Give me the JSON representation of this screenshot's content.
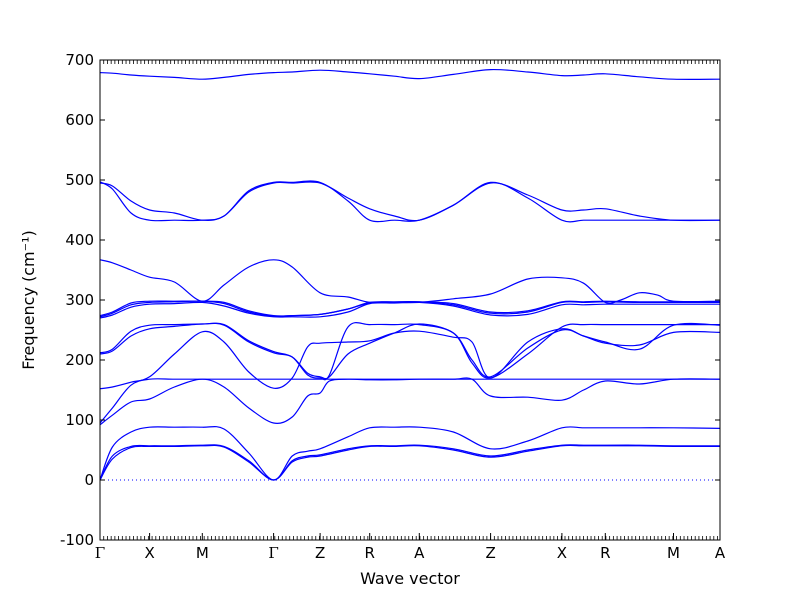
{
  "chart_data": {
    "type": "line",
    "xlabel": "Wave vector",
    "ylabel": "Frequency (cm⁻¹)",
    "ylim": [
      -100,
      700
    ],
    "yticks": [
      -100,
      0,
      100,
      200,
      300,
      400,
      500,
      600,
      700
    ],
    "xlim": [
      0,
      1
    ],
    "xticks": [
      {
        "label": "Γ",
        "x": 0.0
      },
      {
        "label": "X",
        "x": 0.08
      },
      {
        "label": "M",
        "x": 0.165
      },
      {
        "label": "Γ",
        "x": 0.28
      },
      {
        "label": "Z",
        "x": 0.355
      },
      {
        "label": "R",
        "x": 0.435
      },
      {
        "label": "A",
        "x": 0.515
      },
      {
        "label": "Z",
        "x": 0.63
      },
      {
        "label": "X",
        "x": 0.745
      },
      {
        "label": "R",
        "x": 0.815
      },
      {
        "label": "M",
        "x": 0.925
      },
      {
        "label": "A",
        "x": 1.0
      }
    ],
    "zero_line": 0,
    "grid": false,
    "line_color": "#0000ff",
    "series": [
      {
        "x": [
          0.0,
          0.02,
          0.05,
          0.08,
          0.12,
          0.165,
          0.2,
          0.24,
          0.28,
          0.31,
          0.335,
          0.355,
          0.4,
          0.435,
          0.475,
          0.515,
          0.57,
          0.63,
          0.69,
          0.745,
          0.78,
          0.815,
          0.87,
          0.925,
          1.0
        ],
        "y": [
          0,
          35,
          54,
          56,
          56,
          57,
          55,
          30,
          0,
          30,
          38,
          40,
          50,
          56,
          56,
          57,
          50,
          38,
          48,
          57,
          57,
          57,
          57,
          56,
          56
        ]
      },
      {
        "x": [
          0.0,
          0.02,
          0.05,
          0.08,
          0.12,
          0.165,
          0.2,
          0.24,
          0.28,
          0.31,
          0.335,
          0.355,
          0.4,
          0.435,
          0.475,
          0.515,
          0.57,
          0.63,
          0.69,
          0.745,
          0.78,
          0.815,
          0.87,
          0.925,
          1.0
        ],
        "y": [
          0,
          40,
          56,
          57,
          57,
          58,
          56,
          32,
          0,
          32,
          40,
          42,
          52,
          57,
          57,
          58,
          52,
          40,
          50,
          58,
          58,
          58,
          58,
          57,
          57
        ]
      },
      {
        "x": [
          0.0,
          0.02,
          0.05,
          0.08,
          0.12,
          0.165,
          0.2,
          0.24,
          0.28,
          0.31,
          0.335,
          0.355,
          0.4,
          0.435,
          0.475,
          0.515,
          0.57,
          0.63,
          0.69,
          0.745,
          0.78,
          0.815,
          0.87,
          0.925,
          1.0
        ],
        "y": [
          0,
          55,
          80,
          88,
          88,
          88,
          85,
          45,
          0,
          40,
          48,
          52,
          72,
          87,
          88,
          88,
          80,
          52,
          65,
          87,
          87,
          87,
          87,
          87,
          86
        ]
      },
      {
        "x": [
          0.0,
          0.02,
          0.05,
          0.08,
          0.12,
          0.165,
          0.2,
          0.24,
          0.28,
          0.31,
          0.335,
          0.355,
          0.37,
          0.4,
          0.435,
          0.475,
          0.515,
          0.57,
          0.6,
          0.63,
          0.69,
          0.745,
          0.78,
          0.815,
          0.87,
          0.925,
          1.0
        ],
        "y": [
          92,
          108,
          130,
          135,
          155,
          168,
          155,
          120,
          95,
          105,
          140,
          145,
          165,
          168,
          167,
          167,
          168,
          168,
          168,
          140,
          138,
          133,
          150,
          165,
          160,
          168,
          168
        ]
      },
      {
        "x": [
          0.0,
          0.02,
          0.05,
          0.08,
          0.12,
          0.165,
          0.2,
          0.24,
          0.28,
          0.31,
          0.335,
          0.355,
          0.4,
          0.435,
          0.475,
          0.515,
          0.57,
          0.6,
          0.63,
          0.69,
          0.745,
          0.78,
          0.815,
          0.87,
          0.925,
          1.0
        ],
        "y": [
          95,
          120,
          158,
          168,
          168,
          168,
          168,
          168,
          168,
          168,
          168,
          168,
          168,
          168,
          168,
          168,
          168,
          168,
          168,
          168,
          168,
          168,
          168,
          168,
          168,
          168
        ]
      },
      {
        "x": [
          0.0,
          0.02,
          0.05,
          0.08,
          0.12,
          0.165,
          0.2,
          0.24,
          0.28,
          0.31,
          0.335,
          0.355,
          0.4,
          0.435,
          0.475,
          0.515,
          0.57,
          0.6,
          0.63,
          0.69,
          0.745,
          0.78,
          0.815,
          0.87,
          0.925,
          1.0
        ],
        "y": [
          152,
          155,
          163,
          172,
          210,
          247,
          230,
          180,
          153,
          170,
          222,
          228,
          230,
          232,
          245,
          248,
          238,
          230,
          170,
          230,
          252,
          240,
          228,
          225,
          246,
          246
        ]
      },
      {
        "x": [
          0.0,
          0.02,
          0.05,
          0.08,
          0.12,
          0.165,
          0.2,
          0.24,
          0.28,
          0.31,
          0.335,
          0.355,
          0.37,
          0.4,
          0.435,
          0.475,
          0.515,
          0.57,
          0.6,
          0.63,
          0.69,
          0.745,
          0.78,
          0.815,
          0.87,
          0.925,
          1.0
        ],
        "y": [
          210,
          215,
          240,
          252,
          256,
          260,
          258,
          230,
          212,
          205,
          178,
          172,
          172,
          210,
          228,
          245,
          260,
          245,
          200,
          172,
          220,
          250,
          240,
          230,
          218,
          258,
          258
        ]
      },
      {
        "x": [
          0.0,
          0.02,
          0.05,
          0.08,
          0.12,
          0.165,
          0.2,
          0.24,
          0.28,
          0.31,
          0.335,
          0.355,
          0.37,
          0.4,
          0.435,
          0.475,
          0.515,
          0.57,
          0.6,
          0.63,
          0.69,
          0.745,
          0.78,
          0.815,
          0.87,
          0.925,
          1.0
        ],
        "y": [
          212,
          218,
          248,
          258,
          259,
          260,
          259,
          232,
          214,
          205,
          175,
          170,
          175,
          255,
          259,
          259,
          259,
          245,
          195,
          170,
          210,
          255,
          259,
          259,
          259,
          259,
          259
        ]
      },
      {
        "x": [
          0.0,
          0.02,
          0.05,
          0.08,
          0.12,
          0.165,
          0.2,
          0.24,
          0.28,
          0.31,
          0.355,
          0.4,
          0.435,
          0.475,
          0.515,
          0.57,
          0.63,
          0.69,
          0.745,
          0.78,
          0.815,
          0.87,
          0.925,
          1.0
        ],
        "y": [
          270,
          275,
          288,
          293,
          294,
          296,
          290,
          278,
          272,
          272,
          272,
          280,
          294,
          295,
          296,
          290,
          275,
          276,
          292,
          292,
          293,
          293,
          293,
          293
        ]
      },
      {
        "x": [
          0.0,
          0.02,
          0.05,
          0.08,
          0.12,
          0.165,
          0.2,
          0.24,
          0.28,
          0.31,
          0.355,
          0.4,
          0.435,
          0.475,
          0.515,
          0.57,
          0.63,
          0.69,
          0.745,
          0.78,
          0.815,
          0.87,
          0.925,
          1.0
        ],
        "y": [
          272,
          278,
          292,
          296,
          297,
          298,
          294,
          280,
          273,
          274,
          276,
          285,
          295,
          296,
          297,
          292,
          278,
          280,
          296,
          296,
          297,
          296,
          296,
          296
        ]
      },
      {
        "x": [
          0.0,
          0.02,
          0.05,
          0.08,
          0.12,
          0.165,
          0.2,
          0.24,
          0.28,
          0.31,
          0.355,
          0.4,
          0.435,
          0.475,
          0.515,
          0.57,
          0.63,
          0.69,
          0.745,
          0.78,
          0.815,
          0.87,
          0.925,
          1.0
        ],
        "y": [
          274,
          280,
          295,
          298,
          298,
          298,
          296,
          282,
          274,
          274,
          276,
          285,
          296,
          297,
          297,
          294,
          280,
          282,
          297,
          297,
          298,
          297,
          297,
          297
        ]
      },
      {
        "x": [
          0.0,
          0.02,
          0.05,
          0.08,
          0.12,
          0.165,
          0.2,
          0.24,
          0.28,
          0.31,
          0.355,
          0.4,
          0.435,
          0.475,
          0.515,
          0.57,
          0.63,
          0.69,
          0.745,
          0.78,
          0.815,
          0.84,
          0.87,
          0.9,
          0.925,
          1.0
        ],
        "y": [
          367,
          362,
          350,
          338,
          330,
          298,
          325,
          355,
          367,
          355,
          312,
          305,
          296,
          296,
          296,
          302,
          310,
          335,
          337,
          328,
          296,
          300,
          312,
          308,
          298,
          298
        ]
      },
      {
        "x": [
          0.0,
          0.02,
          0.05,
          0.08,
          0.12,
          0.165,
          0.2,
          0.24,
          0.28,
          0.31,
          0.355,
          0.4,
          0.435,
          0.475,
          0.515,
          0.57,
          0.63,
          0.69,
          0.745,
          0.78,
          0.815,
          0.87,
          0.925,
          1.0
        ],
        "y": [
          495,
          490,
          465,
          450,
          445,
          433,
          440,
          480,
          495,
          495,
          495,
          470,
          452,
          440,
          433,
          458,
          495,
          475,
          450,
          450,
          452,
          440,
          433,
          433
        ]
      },
      {
        "x": [
          0.0,
          0.02,
          0.05,
          0.08,
          0.12,
          0.165,
          0.2,
          0.24,
          0.28,
          0.31,
          0.355,
          0.4,
          0.435,
          0.475,
          0.515,
          0.57,
          0.63,
          0.69,
          0.745,
          0.78,
          0.815,
          0.87,
          0.925,
          1.0
        ],
        "y": [
          497,
          485,
          445,
          433,
          433,
          433,
          440,
          482,
          496,
          496,
          496,
          465,
          433,
          433,
          433,
          458,
          496,
          470,
          433,
          433,
          433,
          433,
          433,
          433
        ]
      },
      {
        "x": [
          0.0,
          0.02,
          0.05,
          0.08,
          0.12,
          0.165,
          0.2,
          0.24,
          0.28,
          0.31,
          0.355,
          0.4,
          0.435,
          0.475,
          0.515,
          0.57,
          0.63,
          0.69,
          0.745,
          0.78,
          0.815,
          0.87,
          0.925,
          1.0
        ],
        "y": [
          679,
          678,
          675,
          673,
          671,
          668,
          671,
          676,
          679,
          680,
          683,
          680,
          677,
          673,
          669,
          676,
          684,
          680,
          674,
          675,
          677,
          672,
          668,
          668
        ]
      }
    ]
  }
}
